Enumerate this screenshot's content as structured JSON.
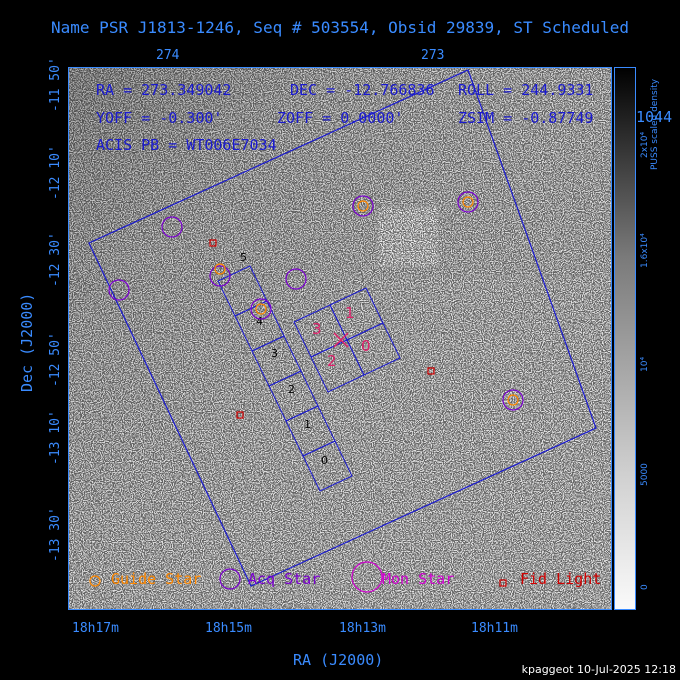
{
  "title": "Name PSR J1813-1246, Seq # 503554, Obsid 29839, ST Scheduled",
  "top_axis_ticks": [
    "274",
    "273"
  ],
  "bottom_axis_ticks": [
    "18h17m",
    "18h15m",
    "18h13m",
    "18h11m"
  ],
  "x_axis_label": "RA (J2000)",
  "y_axis_label": "Dec (J2000)",
  "y_axis_ticks": [
    "-11 50'",
    "-12 10'",
    "-12 30'",
    "-12 50'",
    "-13 10'",
    "-13 30'"
  ],
  "info": {
    "ra": "RA = 273.349042",
    "dec": "DEC = -12.766836",
    "roll": "ROLL = 244.9331",
    "yoff": "YOFF =  -0.300'",
    "zoff": "ZOFF =  0.0000'",
    "zsim": "ZSIM = -0.87749",
    "acis_pb": "ACIS PB = WT006E7034"
  },
  "right_overflow_text": "1044",
  "acis_i_labels": [
    "3",
    "1",
    "2",
    "0"
  ],
  "acis_s_labels": [
    "5",
    "4",
    "3",
    "2",
    "1",
    "0"
  ],
  "legend": {
    "guide": "Guide Star",
    "acq": "Acq Star",
    "mon": "Mon Star",
    "fid": "Fid Light"
  },
  "colorbar": {
    "title": "PUSS scaled density",
    "ticks": [
      "2x10⁴",
      "1.6x10⁴",
      "10⁴",
      "5000",
      "0"
    ]
  },
  "footer": "kpaggeot 10-Jul-2025 12:18",
  "colors": {
    "axis_blue": "#3a8bff",
    "frame_blue": "#1a1ad0",
    "guide": "#ff8800",
    "acq": "#7a00d0",
    "mon": "#d000d0",
    "fid": "#d00000",
    "target": "#e0206a"
  }
}
